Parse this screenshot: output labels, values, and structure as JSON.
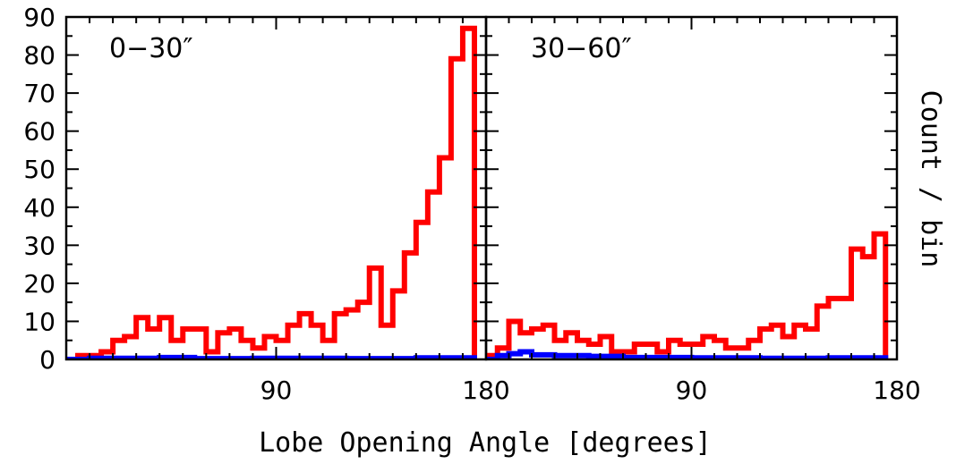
{
  "chart_data": [
    {
      "type": "histogram",
      "panel_label": "0−30″",
      "xlim": [
        0,
        180
      ],
      "ylim": [
        0,
        90
      ],
      "bin_width": 5,
      "series": [
        {
          "color": "#ff0000",
          "bins": [
            [
              5,
              10,
              1
            ],
            [
              10,
              15,
              1
            ],
            [
              15,
              20,
              2
            ],
            [
              20,
              25,
              5
            ],
            [
              25,
              30,
              6
            ],
            [
              30,
              35,
              11
            ],
            [
              35,
              40,
              8
            ],
            [
              40,
              45,
              11
            ],
            [
              45,
              50,
              5
            ],
            [
              50,
              55,
              8
            ],
            [
              55,
              60,
              8
            ],
            [
              60,
              65,
              2
            ],
            [
              65,
              70,
              7
            ],
            [
              70,
              75,
              8
            ],
            [
              75,
              80,
              5
            ],
            [
              80,
              85,
              3
            ],
            [
              85,
              90,
              6
            ],
            [
              90,
              95,
              5
            ],
            [
              95,
              100,
              9
            ],
            [
              100,
              105,
              12
            ],
            [
              105,
              110,
              9
            ],
            [
              110,
              115,
              5
            ],
            [
              115,
              120,
              12
            ],
            [
              120,
              125,
              13
            ],
            [
              125,
              130,
              15
            ],
            [
              130,
              135,
              24
            ],
            [
              135,
              140,
              9
            ],
            [
              140,
              145,
              18
            ],
            [
              145,
              150,
              28
            ],
            [
              150,
              155,
              36
            ],
            [
              155,
              160,
              44
            ],
            [
              160,
              165,
              53
            ],
            [
              165,
              170,
              79
            ],
            [
              170,
              175,
              87
            ]
          ]
        },
        {
          "color": "#0000ff",
          "bins": [
            [
              0,
              10,
              0
            ],
            [
              10,
              40,
              0.3
            ],
            [
              40,
              55,
              0.5
            ],
            [
              55,
              80,
              0.2
            ],
            [
              80,
              120,
              0.3
            ],
            [
              120,
              150,
              0.2
            ],
            [
              150,
              175,
              0.4
            ]
          ]
        }
      ]
    },
    {
      "type": "histogram",
      "panel_label": "30−60″",
      "xlim": [
        0,
        180
      ],
      "ylim": [
        0,
        90
      ],
      "bin_width": 5,
      "series": [
        {
          "color": "#ff0000",
          "bins": [
            [
              0,
              5,
              1
            ],
            [
              5,
              10,
              3
            ],
            [
              10,
              15,
              10
            ],
            [
              15,
              20,
              7
            ],
            [
              20,
              25,
              8
            ],
            [
              25,
              30,
              9
            ],
            [
              30,
              35,
              5
            ],
            [
              35,
              40,
              7
            ],
            [
              40,
              45,
              5
            ],
            [
              45,
              50,
              4
            ],
            [
              50,
              55,
              6
            ],
            [
              55,
              60,
              2
            ],
            [
              60,
              65,
              2
            ],
            [
              65,
              70,
              4
            ],
            [
              70,
              75,
              4
            ],
            [
              75,
              80,
              2
            ],
            [
              80,
              85,
              5
            ],
            [
              85,
              90,
              4
            ],
            [
              90,
              95,
              4
            ],
            [
              95,
              100,
              6
            ],
            [
              100,
              105,
              5
            ],
            [
              105,
              110,
              3
            ],
            [
              110,
              115,
              3
            ],
            [
              115,
              120,
              5
            ],
            [
              120,
              125,
              8
            ],
            [
              125,
              130,
              9
            ],
            [
              130,
              135,
              6
            ],
            [
              135,
              140,
              9
            ],
            [
              140,
              145,
              8
            ],
            [
              145,
              150,
              14
            ],
            [
              150,
              155,
              16
            ],
            [
              155,
              160,
              16
            ],
            [
              160,
              165,
              29
            ],
            [
              165,
              170,
              27
            ],
            [
              170,
              175,
              33
            ]
          ]
        },
        {
          "color": "#0000ff",
          "bins": [
            [
              0,
              5,
              0
            ],
            [
              5,
              10,
              1
            ],
            [
              10,
              15,
              1.5
            ],
            [
              15,
              20,
              2
            ],
            [
              20,
              30,
              1.2
            ],
            [
              30,
              45,
              1
            ],
            [
              45,
              60,
              0.8
            ],
            [
              60,
              90,
              0.5
            ],
            [
              90,
              120,
              0.4
            ],
            [
              120,
              150,
              0.3
            ],
            [
              150,
              175,
              0.4
            ]
          ]
        }
      ]
    }
  ],
  "axes": {
    "y_ticks": [
      "0",
      "10",
      "20",
      "30",
      "40",
      "50",
      "60",
      "70",
      "80",
      "90"
    ],
    "y_tick_values": [
      0,
      10,
      20,
      30,
      40,
      50,
      60,
      70,
      80,
      90
    ],
    "x_tick_values": [
      90,
      180
    ],
    "x_tick_labels": [
      "90",
      "180"
    ],
    "xlabel": "Lobe Opening Angle [degrees]",
    "ylabel": "Count / bin"
  }
}
